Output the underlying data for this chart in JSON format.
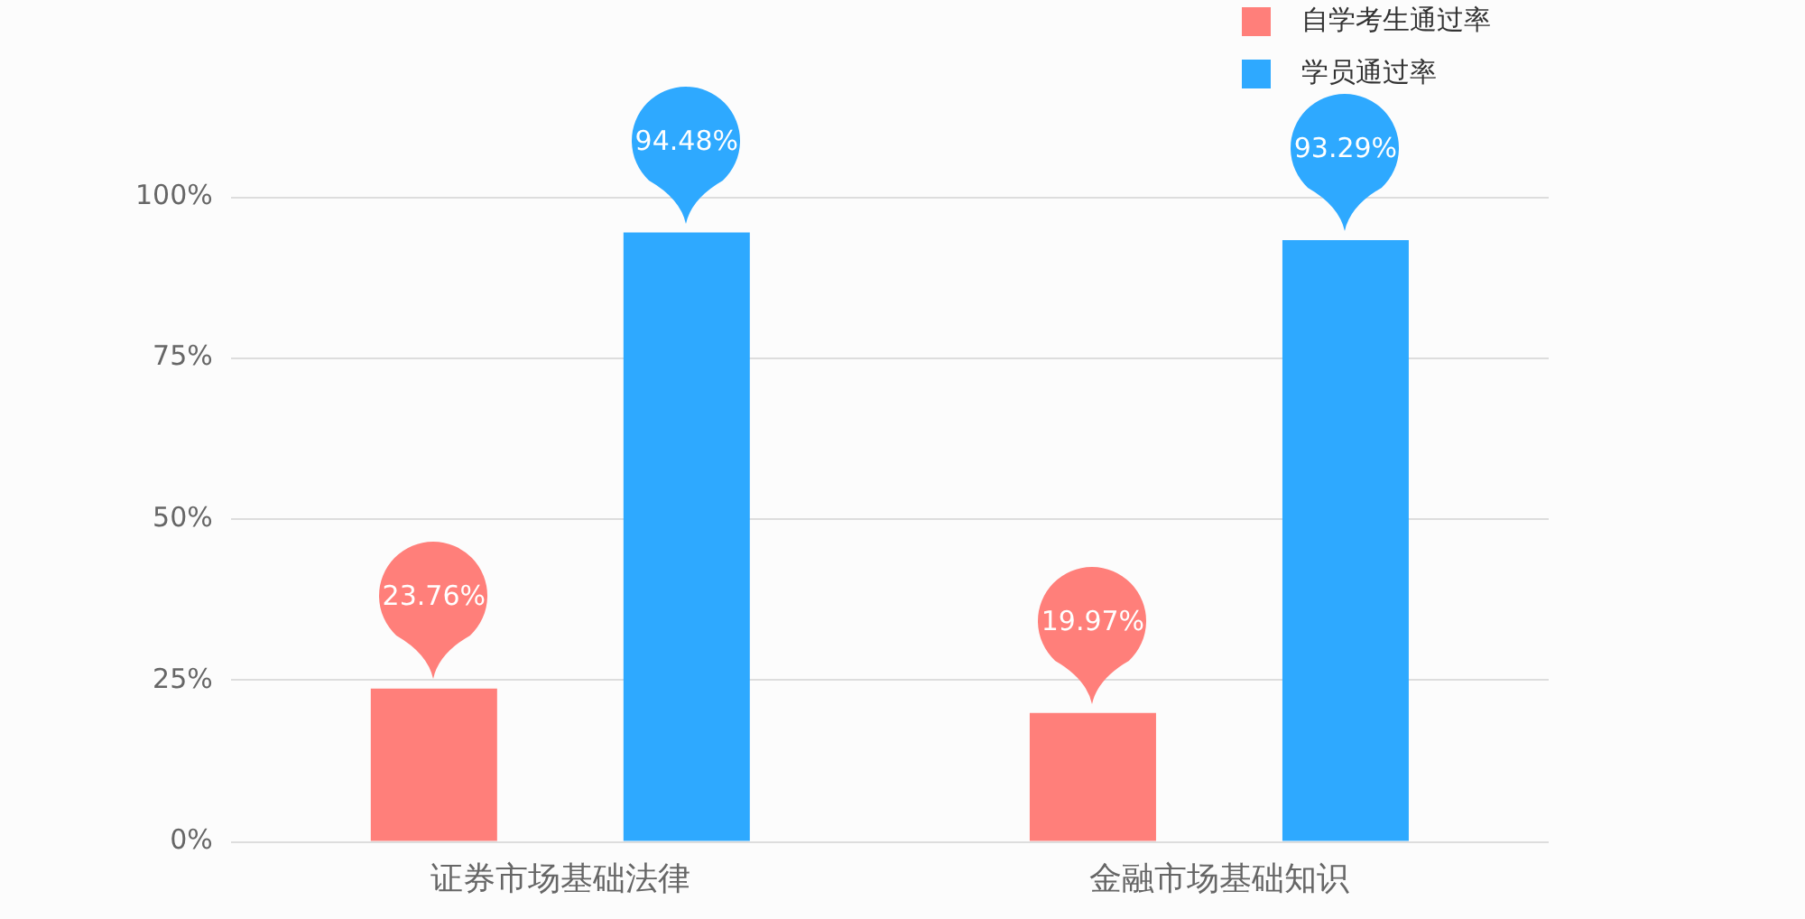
{
  "chart_data": {
    "type": "bar",
    "categories": [
      "证券市场基础法律",
      "金融市场基础知识"
    ],
    "series": [
      {
        "name": "自学考生通过率",
        "color": "#ff7f7a",
        "values": [
          23.76,
          19.97
        ],
        "value_labels": [
          "23.76%",
          "19.97%"
        ]
      },
      {
        "name": "学员通过率",
        "color": "#2ea9ff",
        "values": [
          94.48,
          93.29
        ],
        "value_labels": [
          "94.48%",
          "93.29%"
        ]
      }
    ],
    "ylim": [
      0,
      100
    ],
    "yticks": [
      {
        "value": 0,
        "label": "0%"
      },
      {
        "value": 25,
        "label": "25%"
      },
      {
        "value": 50,
        "label": "50%"
      },
      {
        "value": 75,
        "label": "75%"
      },
      {
        "value": 100,
        "label": "100%"
      }
    ],
    "grid": "y",
    "legend": "top right"
  }
}
